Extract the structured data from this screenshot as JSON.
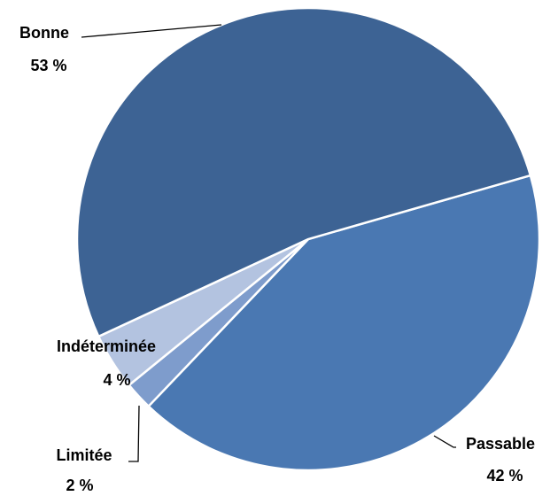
{
  "chart_data": {
    "type": "pie",
    "categories": [
      "Passable",
      "Limitée",
      "Indéterminée",
      "Bonne"
    ],
    "values": [
      42,
      2,
      4,
      53
    ],
    "value_labels": [
      "42 %",
      "2 %",
      "4 %",
      "53 %"
    ],
    "colors": [
      "#4a78b2",
      "#7e9ccc",
      "#b3c3e0",
      "#3d6394"
    ]
  }
}
